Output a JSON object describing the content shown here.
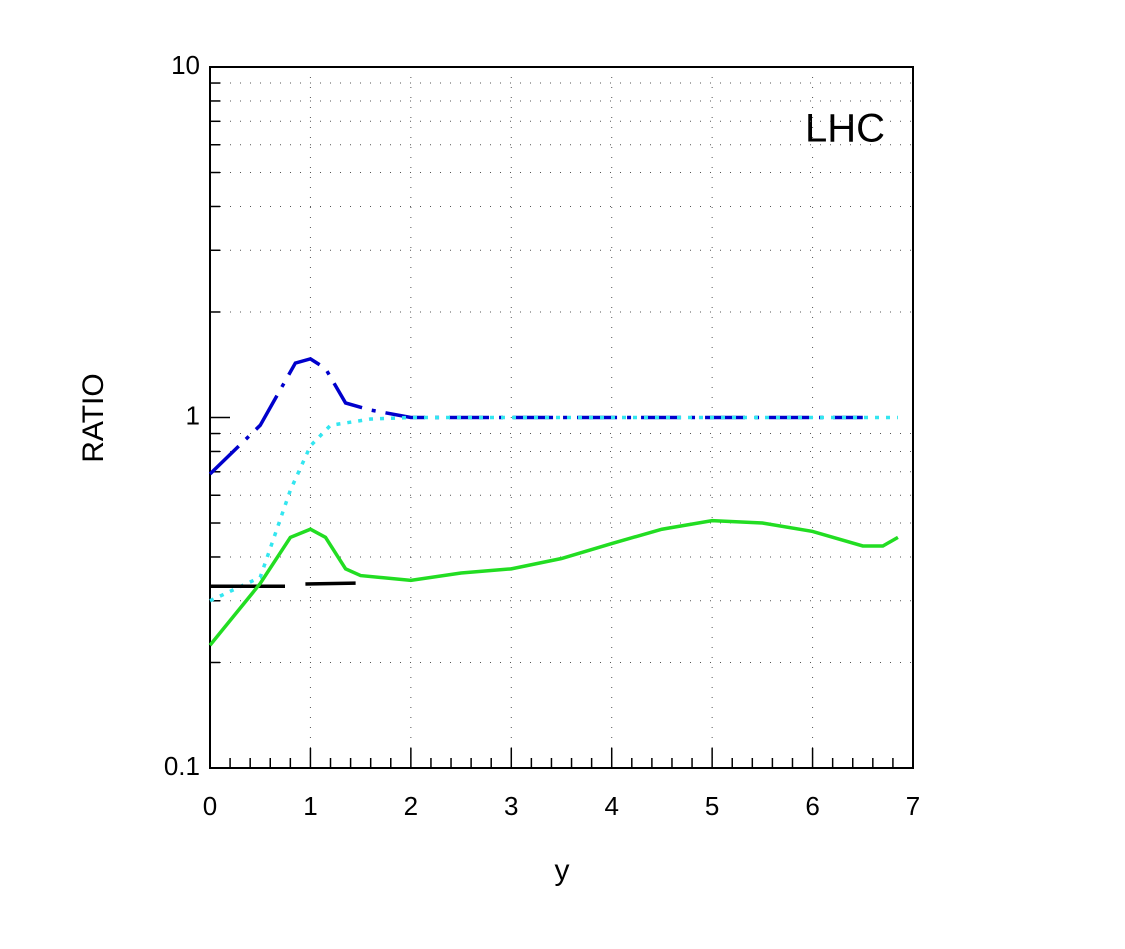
{
  "chart_data": {
    "type": "line",
    "annotation": "LHC",
    "xlabel": "y",
    "ylabel": "RATIO",
    "log_y": true,
    "grid": true,
    "xlim": [
      0,
      7
    ],
    "xticks": [
      0,
      1,
      2,
      3,
      4,
      5,
      6,
      7
    ],
    "xminor": [
      0.2,
      0.4,
      0.6,
      0.8,
      1.2,
      1.4,
      1.6,
      1.8,
      2.2,
      2.4,
      2.6,
      2.8,
      3.2,
      3.4,
      3.6,
      3.8,
      4.2,
      4.4,
      4.6,
      4.8,
      5.2,
      5.4,
      5.6,
      5.8,
      6.2,
      6.4,
      6.6,
      6.8
    ],
    "ylim": [
      0.1,
      10
    ],
    "yticks": [
      0.1,
      1,
      10
    ],
    "yminor": [
      0.2,
      0.3,
      0.4,
      0.5,
      0.6,
      0.7,
      0.8,
      0.9,
      2,
      3,
      4,
      5,
      6,
      7,
      8,
      9
    ],
    "series": [
      {
        "color": "#0000cc",
        "dash": "dashdot",
        "x": [
          0,
          0.5,
          0.85,
          1.0,
          1.15,
          1.35,
          1.6,
          2,
          3,
          4,
          5,
          6,
          6.5
        ],
        "values": [
          0.69,
          0.95,
          1.43,
          1.47,
          1.38,
          1.1,
          1.05,
          1.0,
          1.0,
          1.0,
          1.0,
          1.0,
          1.0
        ]
      },
      {
        "color": "#33e6f0",
        "dash": "dot",
        "x": [
          0,
          0.5,
          0.8,
          1.0,
          1.2,
          1.6,
          2,
          3,
          4,
          5,
          6,
          6.85
        ],
        "values": [
          0.3,
          0.35,
          0.62,
          0.83,
          0.95,
          0.99,
          1.0,
          1.0,
          1.0,
          1.0,
          1.0,
          1.0
        ]
      },
      {
        "color": "#000000",
        "dash": "longdash",
        "x": [
          0,
          0.75,
          0.85,
          0.95,
          1.45
        ],
        "values": [
          0.33,
          0.33,
          null,
          0.335,
          0.337
        ]
      },
      {
        "color": "#22dd22",
        "dash": "solid",
        "x": [
          0,
          0.5,
          0.8,
          1.0,
          1.15,
          1.35,
          1.5,
          2,
          2.5,
          3,
          3.5,
          4,
          4.5,
          5,
          5.5,
          6,
          6.5,
          6.7,
          6.85
        ],
        "values": [
          0.224,
          0.336,
          0.455,
          0.48,
          0.455,
          0.37,
          0.354,
          0.343,
          0.36,
          0.37,
          0.396,
          0.437,
          0.48,
          0.508,
          0.5,
          0.473,
          0.43,
          0.43,
          0.455
        ]
      }
    ]
  }
}
